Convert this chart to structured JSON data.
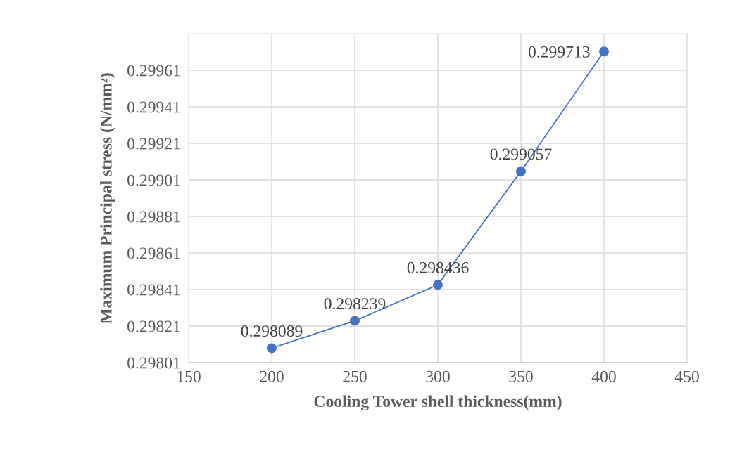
{
  "chart_data": {
    "type": "line",
    "xlabel": "Cooling Tower shell thickness(mm)",
    "ylabel": "Maximum Principal stress (N/mm²)",
    "x": [
      200,
      250,
      300,
      350,
      400
    ],
    "series": [
      {
        "color": "#4472c4",
        "values": [
          0.298089,
          0.298239,
          0.298436,
          0.299057,
          0.299713
        ]
      }
    ],
    "xlim": [
      150,
      450
    ],
    "xticks": [
      150,
      200,
      250,
      300,
      350,
      400,
      450
    ],
    "ylim": [
      0.29801,
      0.29981
    ],
    "yticks": [
      0.29801,
      0.29821,
      0.29841,
      0.29861,
      0.29881,
      0.29901,
      0.29921,
      0.29941,
      0.29961,
      {
        "value": 0.29981,
        "label": null
      }
    ],
    "grid": true,
    "marker": "circle",
    "line_style": "solid",
    "data_labels": true
  }
}
